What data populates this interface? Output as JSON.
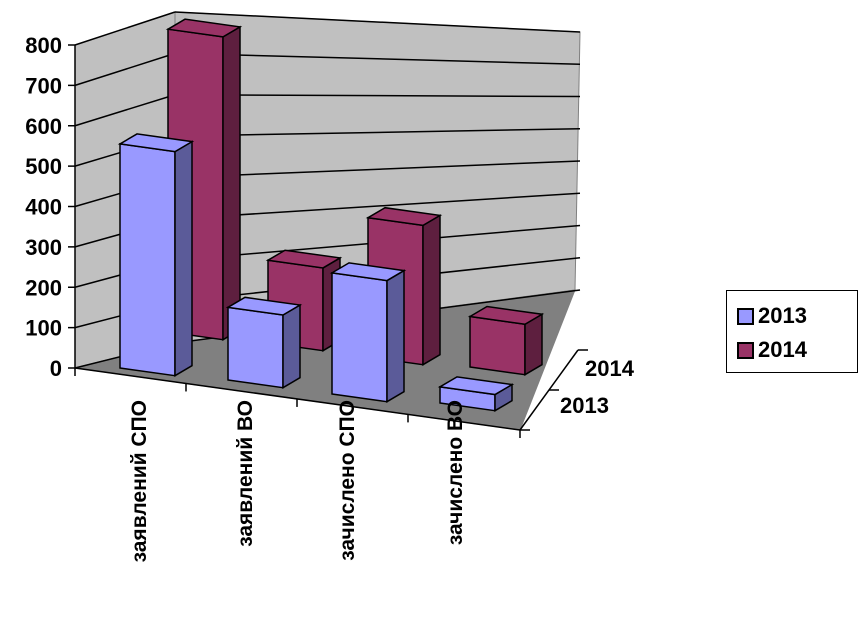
{
  "chart_data": {
    "type": "bar",
    "subtype": "3d-column",
    "categories": [
      "заявлений СПО",
      "заявлений ВО",
      "зачислено СПО",
      "зачислено ВО"
    ],
    "series": [
      {
        "name": "2013",
        "values": [
          555,
          180,
          300,
          40
        ],
        "color": "#9999ff",
        "side_color": "#5b5b99"
      },
      {
        "name": "2014",
        "values": [
          750,
          205,
          345,
          125
        ],
        "color": "#993366",
        "side_color": "#5e1f3f"
      }
    ],
    "depth_labels": [
      "2014",
      "2013"
    ],
    "yticks": [
      "800",
      "700",
      "600",
      "500",
      "400",
      "300",
      "200",
      "100",
      "0"
    ],
    "ylim": [
      0,
      800
    ],
    "grid": true,
    "legend_position": "right",
    "wall_color": "#c0c0c0",
    "floor_color": "#808080"
  }
}
